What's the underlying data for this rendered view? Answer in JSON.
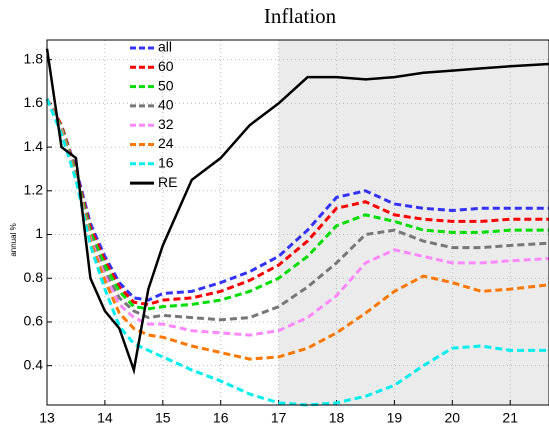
{
  "chart_data": {
    "type": "line",
    "title": "Inflation",
    "y_label": "annual %",
    "x": [
      13,
      13.25,
      13.5,
      13.75,
      14,
      14.25,
      14.5,
      14.75,
      15,
      15.5,
      16,
      16.5,
      17,
      17.5,
      18,
      18.5,
      19,
      19.5,
      20,
      20.5,
      21,
      21.67
    ],
    "series": [
      {
        "name": "all",
        "color": "#3333ff",
        "style": "dashed",
        "values": [
          1.62,
          1.5,
          1.3,
          1.05,
          0.9,
          0.78,
          0.71,
          0.7,
          0.73,
          0.74,
          0.78,
          0.83,
          0.9,
          1.02,
          1.17,
          1.2,
          1.14,
          1.12,
          1.11,
          1.12,
          1.12,
          1.12
        ]
      },
      {
        "name": "60",
        "color": "#ff0000",
        "style": "dashed",
        "values": [
          1.62,
          1.5,
          1.29,
          1.03,
          0.88,
          0.76,
          0.69,
          0.68,
          0.7,
          0.71,
          0.74,
          0.79,
          0.86,
          0.97,
          1.12,
          1.15,
          1.09,
          1.07,
          1.06,
          1.06,
          1.07,
          1.07
        ]
      },
      {
        "name": "50",
        "color": "#00dd00",
        "style": "dashed",
        "values": [
          1.62,
          1.49,
          1.28,
          1.01,
          0.86,
          0.74,
          0.67,
          0.66,
          0.67,
          0.68,
          0.7,
          0.74,
          0.8,
          0.9,
          1.04,
          1.09,
          1.06,
          1.02,
          1.01,
          1.01,
          1.02,
          1.02
        ]
      },
      {
        "name": "40",
        "color": "#777777",
        "style": "dashed",
        "values": [
          1.62,
          1.48,
          1.27,
          0.99,
          0.83,
          0.71,
          0.65,
          0.62,
          0.63,
          0.62,
          0.61,
          0.62,
          0.67,
          0.76,
          0.87,
          1.0,
          1.02,
          0.97,
          0.94,
          0.94,
          0.95,
          0.96
        ]
      },
      {
        "name": "32",
        "color": "#ff88ff",
        "style": "dashed",
        "values": [
          1.62,
          1.48,
          1.26,
          0.98,
          0.81,
          0.68,
          0.62,
          0.59,
          0.59,
          0.56,
          0.55,
          0.54,
          0.56,
          0.62,
          0.72,
          0.87,
          0.93,
          0.9,
          0.87,
          0.87,
          0.88,
          0.89
        ]
      },
      {
        "name": "24",
        "color": "#ff7700",
        "style": "dashed",
        "values": [
          1.62,
          1.47,
          1.26,
          0.97,
          0.79,
          0.64,
          0.57,
          0.54,
          0.53,
          0.49,
          0.46,
          0.43,
          0.44,
          0.48,
          0.55,
          0.64,
          0.74,
          0.81,
          0.78,
          0.74,
          0.75,
          0.77
        ]
      },
      {
        "name": "16",
        "color": "#00eeee",
        "style": "dashed",
        "values": [
          1.62,
          1.46,
          1.25,
          0.95,
          0.75,
          0.58,
          0.5,
          0.47,
          0.44,
          0.38,
          0.33,
          0.27,
          0.23,
          0.22,
          0.23,
          0.26,
          0.31,
          0.4,
          0.48,
          0.49,
          0.47,
          0.47
        ]
      },
      {
        "name": "RE",
        "color": "#000000",
        "style": "solid",
        "values": [
          1.85,
          1.4,
          1.35,
          0.8,
          0.65,
          0.57,
          0.38,
          0.75,
          0.95,
          1.25,
          1.35,
          1.5,
          1.6,
          1.72,
          1.72,
          1.71,
          1.72,
          1.74,
          1.75,
          1.76,
          1.77,
          1.78
        ]
      }
    ],
    "xlim": [
      13,
      21.67
    ],
    "xticks": [
      13,
      14,
      15,
      16,
      17,
      18,
      19,
      20,
      21
    ],
    "ylim": [
      0.22,
      1.89
    ],
    "yticks": [
      0.4,
      0.6,
      0.8,
      1,
      1.2,
      1.4,
      1.6,
      1.8
    ],
    "shade_start": 17,
    "grid": true,
    "legend": "upper left"
  }
}
